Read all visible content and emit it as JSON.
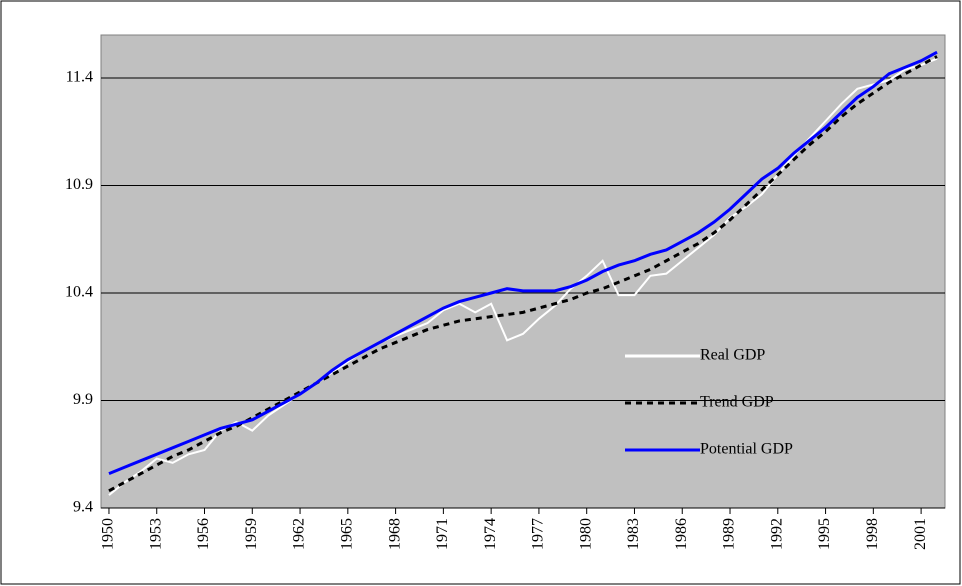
{
  "chart_data": {
    "type": "line",
    "x": [
      1950,
      1951,
      1952,
      1953,
      1954,
      1955,
      1956,
      1957,
      1958,
      1959,
      1960,
      1961,
      1962,
      1963,
      1964,
      1965,
      1966,
      1967,
      1968,
      1969,
      1970,
      1971,
      1972,
      1973,
      1974,
      1975,
      1976,
      1977,
      1978,
      1979,
      1980,
      1981,
      1982,
      1983,
      1984,
      1985,
      1986,
      1987,
      1988,
      1989,
      1990,
      1991,
      1992,
      1993,
      1994,
      1995,
      1996,
      1997,
      1998,
      1999,
      2000,
      2001,
      2002
    ],
    "series": [
      {
        "name": "Real GDP",
        "color": "#ffffff",
        "style": "solid",
        "values": [
          9.46,
          9.52,
          9.57,
          9.63,
          9.61,
          9.65,
          9.67,
          9.76,
          9.8,
          9.76,
          9.83,
          9.88,
          9.93,
          9.98,
          10.03,
          10.08,
          10.13,
          10.17,
          10.2,
          10.23,
          10.26,
          10.32,
          10.35,
          10.31,
          10.35,
          10.18,
          10.21,
          10.28,
          10.34,
          10.42,
          10.48,
          10.55,
          10.39,
          10.39,
          10.48,
          10.49,
          10.55,
          10.61,
          10.67,
          10.75,
          10.8,
          10.86,
          10.95,
          11.04,
          11.12,
          11.2,
          11.28,
          11.35,
          11.37,
          11.39,
          11.44,
          11.46,
          11.49
        ]
      },
      {
        "name": "Trend GDP",
        "color": "#000000",
        "style": "dashed",
        "values": [
          9.48,
          9.52,
          9.56,
          9.6,
          9.64,
          9.67,
          9.71,
          9.75,
          9.78,
          9.82,
          9.86,
          9.9,
          9.94,
          9.98,
          10.02,
          10.06,
          10.1,
          10.14,
          10.17,
          10.2,
          10.23,
          10.25,
          10.27,
          10.28,
          10.29,
          10.3,
          10.31,
          10.33,
          10.35,
          10.37,
          10.4,
          10.42,
          10.45,
          10.48,
          10.51,
          10.55,
          10.59,
          10.63,
          10.68,
          10.74,
          10.81,
          10.88,
          10.95,
          11.02,
          11.09,
          11.15,
          11.22,
          11.28,
          11.33,
          11.38,
          11.42,
          11.46,
          11.5
        ]
      },
      {
        "name": "Potential GDP",
        "color": "#0000ff",
        "style": "solid",
        "values": [
          9.56,
          9.59,
          9.62,
          9.65,
          9.68,
          9.71,
          9.74,
          9.77,
          9.79,
          9.81,
          9.85,
          9.89,
          9.93,
          9.98,
          10.04,
          10.09,
          10.13,
          10.17,
          10.21,
          10.25,
          10.29,
          10.33,
          10.36,
          10.38,
          10.4,
          10.42,
          10.41,
          10.41,
          10.41,
          10.43,
          10.46,
          10.5,
          10.53,
          10.55,
          10.58,
          10.6,
          10.64,
          10.68,
          10.73,
          10.79,
          10.86,
          10.93,
          10.98,
          11.05,
          11.11,
          11.17,
          11.24,
          11.31,
          11.36,
          11.42,
          11.45,
          11.48,
          11.52
        ]
      }
    ],
    "xlim": [
      1949.5,
      2002.5
    ],
    "xticks": [
      1950,
      1953,
      1956,
      1959,
      1962,
      1965,
      1968,
      1971,
      1974,
      1977,
      1980,
      1983,
      1986,
      1989,
      1992,
      1995,
      1998,
      2001
    ],
    "ylim": [
      9.4,
      11.6
    ],
    "yticks": [
      9.4,
      9.9,
      10.4,
      10.9,
      11.4
    ],
    "grid": true,
    "legend": "right"
  }
}
